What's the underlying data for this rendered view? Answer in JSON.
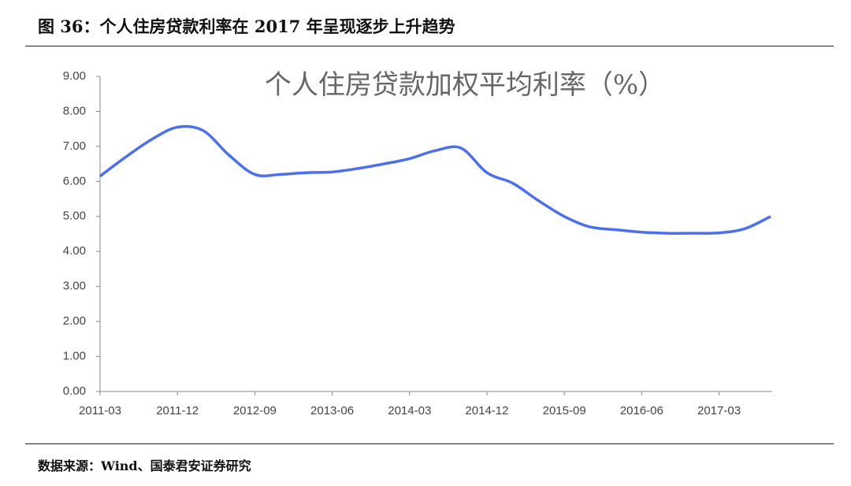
{
  "figure_title": "图 36：个人住房贷款利率在 2017 年呈现逐步上升趋势",
  "source": "数据来源：Wind、国泰君安证券研究",
  "chart_data": {
    "type": "line",
    "title": "个人住房贷款加权平均利率（%）",
    "categories": [
      "2011-03",
      null,
      null,
      "2011-12",
      null,
      null,
      "2012-09",
      null,
      null,
      "2013-06",
      null,
      null,
      "2014-03",
      null,
      null,
      "2014-12",
      null,
      null,
      "2015-09",
      null,
      null,
      "2016-06",
      null,
      null,
      "2017-03",
      null,
      null
    ],
    "values": [
      6.15,
      6.7,
      7.2,
      7.55,
      7.45,
      6.75,
      6.2,
      6.2,
      6.25,
      6.27,
      6.37,
      6.5,
      6.65,
      6.88,
      6.95,
      6.25,
      5.95,
      5.45,
      5.0,
      4.7,
      4.62,
      4.55,
      4.52,
      4.52,
      4.53,
      4.65,
      5.0
    ],
    "color": "#4a6ff0",
    "ylim": [
      0,
      9
    ],
    "yticks": [
      {
        "value": 0,
        "label": "0.00"
      },
      {
        "value": 1,
        "label": "1.00"
      },
      {
        "value": 2,
        "label": "2.00"
      },
      {
        "value": 3,
        "label": "3.00"
      },
      {
        "value": 4,
        "label": "4.00"
      },
      {
        "value": 5,
        "label": "5.00"
      },
      {
        "value": 6,
        "label": "6.00"
      },
      {
        "value": 7,
        "label": "7.00"
      },
      {
        "value": 8,
        "label": "8.00"
      },
      {
        "value": 9,
        "label": "9.00"
      }
    ]
  }
}
